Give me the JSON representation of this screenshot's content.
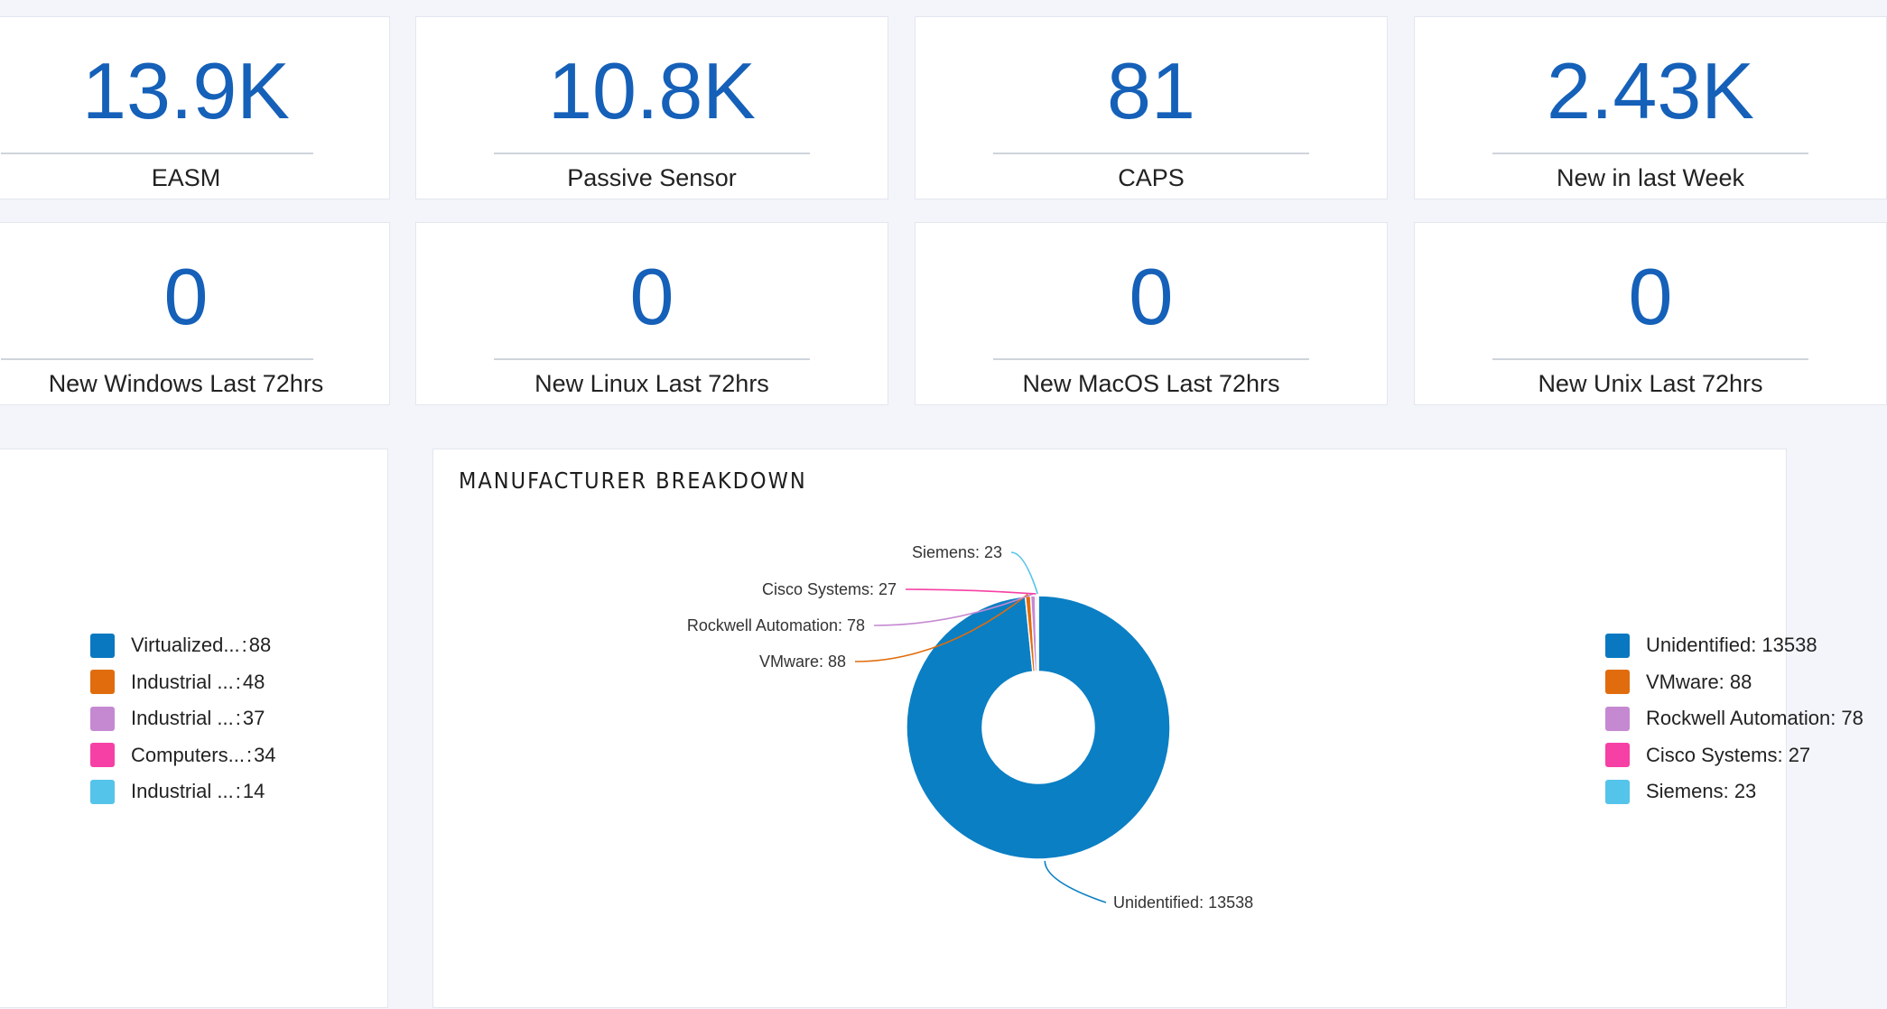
{
  "stats_row1": [
    {
      "value": "13.9K",
      "label": "EASM"
    },
    {
      "value": "10.8K",
      "label": "Passive Sensor"
    },
    {
      "value": "81",
      "label": "CAPS"
    },
    {
      "value": "2.43K",
      "label": "New in last Week"
    }
  ],
  "stats_row2": [
    {
      "value": "0",
      "label": "New Windows Last 72hrs"
    },
    {
      "value": "0",
      "label": "New Linux Last 72hrs"
    },
    {
      "value": "0",
      "label": "New MacOS Last 72hrs"
    },
    {
      "value": "0",
      "label": "New Unix Last 72hrs"
    }
  ],
  "left_panel": {
    "legend": [
      {
        "name": "Virtualized...",
        "sep": ":",
        "value": "88",
        "color": "#0a78c0"
      },
      {
        "name": "Industrial ...",
        "sep": ":",
        "value": "48",
        "color": "#e06c0d"
      },
      {
        "name": "Industrial ...",
        "sep": ":",
        "value": "37",
        "color": "#c589d2"
      },
      {
        "name": "Computers...",
        "sep": ":",
        "value": "34",
        "color": "#f640a5"
      },
      {
        "name": "Industrial ...",
        "sep": ":",
        "value": "14",
        "color": "#55c4ea"
      }
    ]
  },
  "manufacturer_panel": {
    "title": "MANUFACTURER BREAKDOWN",
    "chart_data": {
      "type": "pie",
      "title": "MANUFACTURER BREAKDOWN",
      "categories": [
        "Unidentified",
        "VMware",
        "Rockwell Automation",
        "Cisco Systems",
        "Siemens"
      ],
      "values": [
        13538,
        88,
        78,
        27,
        23
      ],
      "callouts": [
        "Unidentified: 13538",
        "VMware: 88",
        "Rockwell Automation: 78",
        "Cisco Systems: 27",
        "Siemens: 23"
      ],
      "colors": [
        "#0a7fc4",
        "#e06c0d",
        "#c589d2",
        "#f640a5",
        "#55c4ea"
      ],
      "legend_placement": "right"
    },
    "legend": [
      {
        "label": "Unidentified: 13538",
        "color": "#0a78c0"
      },
      {
        "label": "VMware: 88",
        "color": "#e06c0d"
      },
      {
        "label": "Rockwell Automation: 78",
        "color": "#c589d2"
      },
      {
        "label": "Cisco Systems: 27",
        "color": "#f640a5"
      },
      {
        "label": "Siemens: 23",
        "color": "#55c4ea"
      }
    ]
  }
}
